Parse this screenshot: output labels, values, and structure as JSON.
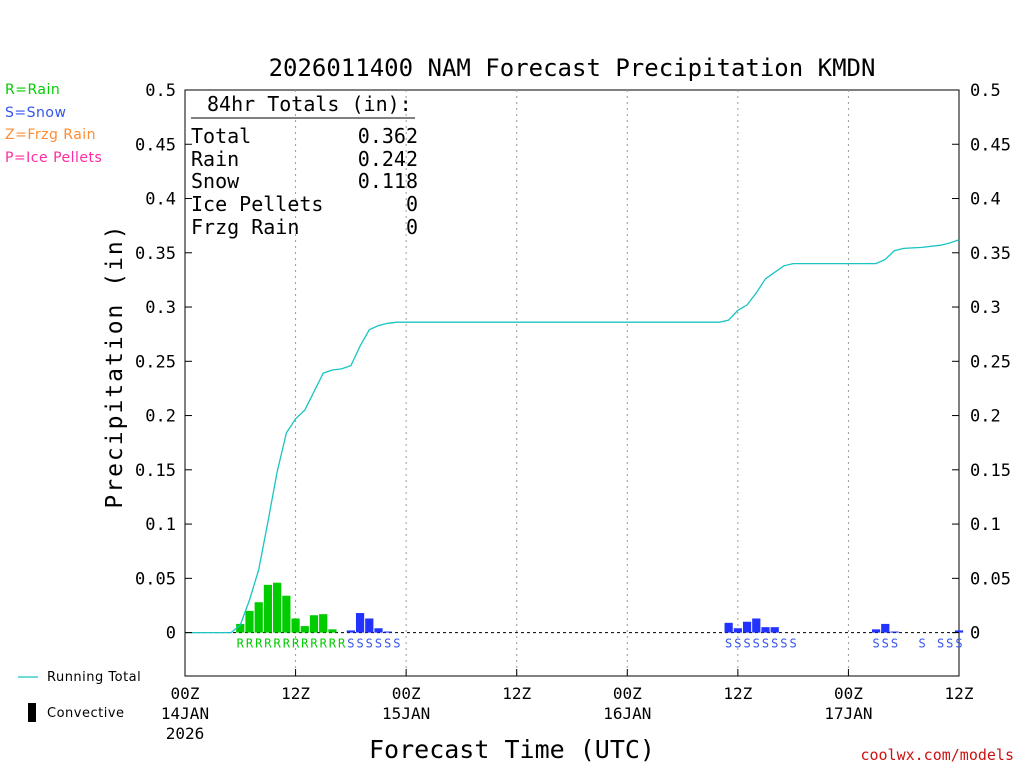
{
  "chart_data": {
    "type": "bar",
    "title": "2026011400 NAM Forecast Precipitation KMDN",
    "xlabel": "Forecast Time (UTC)",
    "ylabel": "Precipitation (in)",
    "ylim": [
      -0.04,
      0.5
    ],
    "xlim_hours": [
      0,
      84
    ],
    "y_ticks": [
      0,
      0.05,
      0.1,
      0.15,
      0.2,
      0.25,
      0.3,
      0.35,
      0.4,
      0.45,
      0.5
    ],
    "y_tick_labels": [
      "0",
      "0.05",
      "0.1",
      "0.15",
      "0.2",
      "0.25",
      "0.3",
      "0.35",
      "0.4",
      "0.45",
      "0.5"
    ],
    "x_ticks": [
      {
        "hour": 0,
        "label": "00Z",
        "sub1": "14JAN",
        "sub2": "2026"
      },
      {
        "hour": 12,
        "label": "12Z",
        "sub1": "",
        "sub2": ""
      },
      {
        "hour": 24,
        "label": "00Z",
        "sub1": "15JAN",
        "sub2": ""
      },
      {
        "hour": 36,
        "label": "12Z",
        "sub1": "",
        "sub2": ""
      },
      {
        "hour": 48,
        "label": "00Z",
        "sub1": "16JAN",
        "sub2": ""
      },
      {
        "hour": 60,
        "label": "12Z",
        "sub1": "",
        "sub2": ""
      },
      {
        "hour": 72,
        "label": "00Z",
        "sub1": "17JAN",
        "sub2": ""
      },
      {
        "hour": 84,
        "label": "12Z",
        "sub1": "",
        "sub2": ""
      }
    ],
    "totals": {
      "heading": "84hr Totals (in):",
      "rows": [
        {
          "label": "Total",
          "value": "0.362"
        },
        {
          "label": "Rain",
          "value": "0.242"
        },
        {
          "label": "Snow",
          "value": "0.118"
        },
        {
          "label": "Ice Pellets",
          "value": "0"
        },
        {
          "label": "Frzg Rain",
          "value": "0"
        }
      ]
    },
    "type_legend": [
      {
        "label": "R=Rain",
        "color": "#00cc00"
      },
      {
        "label": "S=Snow",
        "color": "#3355ee"
      },
      {
        "label": "Z=Frzg Rain",
        "color": "#ff8c33"
      },
      {
        "label": "P=Ice Pellets",
        "color": "#ff2ba0"
      }
    ],
    "line_legend": {
      "running_total": "Running Total",
      "convective": "Convective"
    },
    "colors": {
      "rain": "#00cc00",
      "snow": "#2233ff",
      "total": "#19c4c4",
      "snow_text": "#3355ee"
    },
    "bars": [
      {
        "hour": 6,
        "value": 0.008,
        "type": "rain"
      },
      {
        "hour": 7,
        "value": 0.02,
        "type": "rain"
      },
      {
        "hour": 8,
        "value": 0.028,
        "type": "rain"
      },
      {
        "hour": 9,
        "value": 0.044,
        "type": "rain"
      },
      {
        "hour": 10,
        "value": 0.046,
        "type": "rain"
      },
      {
        "hour": 11,
        "value": 0.034,
        "type": "rain"
      },
      {
        "hour": 12,
        "value": 0.013,
        "type": "rain"
      },
      {
        "hour": 13,
        "value": 0.006,
        "type": "rain"
      },
      {
        "hour": 14,
        "value": 0.016,
        "type": "rain"
      },
      {
        "hour": 15,
        "value": 0.017,
        "type": "rain"
      },
      {
        "hour": 16,
        "value": 0.003,
        "type": "rain"
      },
      {
        "hour": 18,
        "value": 0.002,
        "type": "snow"
      },
      {
        "hour": 19,
        "value": 0.018,
        "type": "snow"
      },
      {
        "hour": 20,
        "value": 0.013,
        "type": "snow"
      },
      {
        "hour": 21,
        "value": 0.004,
        "type": "snow"
      },
      {
        "hour": 22,
        "value": 0.001,
        "type": "snow"
      },
      {
        "hour": 59,
        "value": 0.009,
        "type": "snow"
      },
      {
        "hour": 60,
        "value": 0.004,
        "type": "snow"
      },
      {
        "hour": 61,
        "value": 0.01,
        "type": "snow"
      },
      {
        "hour": 62,
        "value": 0.013,
        "type": "snow"
      },
      {
        "hour": 63,
        "value": 0.005,
        "type": "snow"
      },
      {
        "hour": 64,
        "value": 0.005,
        "type": "snow"
      },
      {
        "hour": 75,
        "value": 0.003,
        "type": "snow"
      },
      {
        "hour": 76,
        "value": 0.008,
        "type": "snow"
      },
      {
        "hour": 77,
        "value": 0.001,
        "type": "snow"
      },
      {
        "hour": 84,
        "value": 0.002,
        "type": "snow"
      }
    ],
    "precip_type_markers": [
      {
        "hour": 6,
        "code": "R"
      },
      {
        "hour": 7,
        "code": "R"
      },
      {
        "hour": 8,
        "code": "R"
      },
      {
        "hour": 9,
        "code": "R"
      },
      {
        "hour": 10,
        "code": "R"
      },
      {
        "hour": 11,
        "code": "R"
      },
      {
        "hour": 12,
        "code": "R"
      },
      {
        "hour": 13,
        "code": "R"
      },
      {
        "hour": 14,
        "code": "R"
      },
      {
        "hour": 15,
        "code": "R"
      },
      {
        "hour": 16,
        "code": "R"
      },
      {
        "hour": 17,
        "code": "R"
      },
      {
        "hour": 18,
        "code": "S"
      },
      {
        "hour": 19,
        "code": "S"
      },
      {
        "hour": 20,
        "code": "S"
      },
      {
        "hour": 21,
        "code": "S"
      },
      {
        "hour": 22,
        "code": "S"
      },
      {
        "hour": 23,
        "code": "S"
      },
      {
        "hour": 59,
        "code": "S"
      },
      {
        "hour": 60,
        "code": "S"
      },
      {
        "hour": 61,
        "code": "S"
      },
      {
        "hour": 62,
        "code": "S"
      },
      {
        "hour": 63,
        "code": "S"
      },
      {
        "hour": 64,
        "code": "S"
      },
      {
        "hour": 65,
        "code": "S"
      },
      {
        "hour": 66,
        "code": "S"
      },
      {
        "hour": 75,
        "code": "S"
      },
      {
        "hour": 76,
        "code": "S"
      },
      {
        "hour": 77,
        "code": "S"
      },
      {
        "hour": 80,
        "code": "S"
      },
      {
        "hour": 82,
        "code": "S"
      },
      {
        "hour": 83,
        "code": "S"
      },
      {
        "hour": 84,
        "code": "S"
      }
    ],
    "running_total": [
      [
        0,
        0
      ],
      [
        5,
        0
      ],
      [
        6,
        0.007
      ],
      [
        7,
        0.03
      ],
      [
        8,
        0.058
      ],
      [
        9,
        0.102
      ],
      [
        10,
        0.148
      ],
      [
        11,
        0.184
      ],
      [
        12,
        0.197
      ],
      [
        13,
        0.205
      ],
      [
        14,
        0.222
      ],
      [
        15,
        0.239
      ],
      [
        16,
        0.242
      ],
      [
        17,
        0.243
      ],
      [
        18,
        0.246
      ],
      [
        19,
        0.264
      ],
      [
        20,
        0.279
      ],
      [
        21,
        0.283
      ],
      [
        22,
        0.285
      ],
      [
        23,
        0.286
      ],
      [
        24,
        0.286
      ],
      [
        58,
        0.286
      ],
      [
        59,
        0.288
      ],
      [
        60,
        0.297
      ],
      [
        61,
        0.302
      ],
      [
        62,
        0.313
      ],
      [
        63,
        0.326
      ],
      [
        64,
        0.332
      ],
      [
        65,
        0.338
      ],
      [
        66,
        0.34
      ],
      [
        67,
        0.34
      ],
      [
        75,
        0.34
      ],
      [
        76,
        0.344
      ],
      [
        77,
        0.352
      ],
      [
        78,
        0.354
      ],
      [
        80,
        0.355
      ],
      [
        82,
        0.357
      ],
      [
        83,
        0.359
      ],
      [
        84,
        0.362
      ]
    ]
  },
  "footer": {
    "credit": "coolwx.com/models"
  }
}
